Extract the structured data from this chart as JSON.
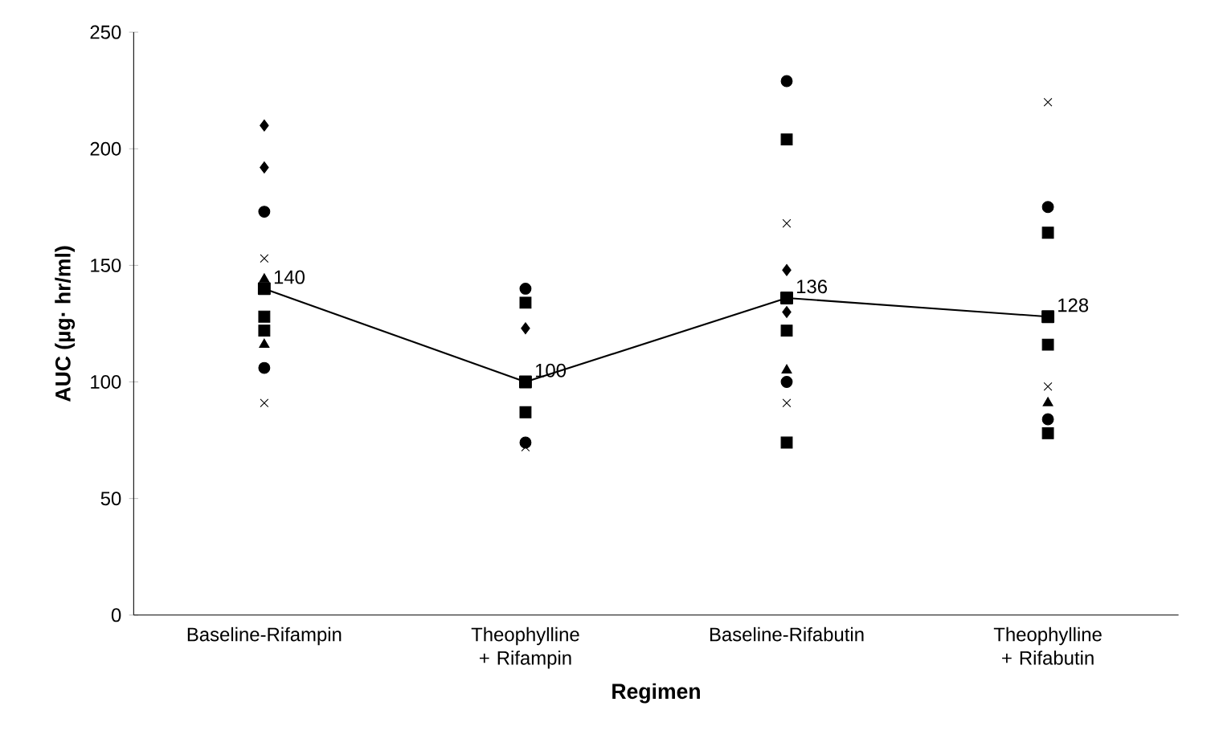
{
  "chart_data": {
    "type": "scatter",
    "xlabel": "Regimen",
    "ylabel": "AUC (µg· hr/ml)",
    "categories": [
      "Baseline-Rifampin",
      "Theophylline + Rifampin",
      "Baseline-Rifabutin",
      "Theophylline + Rifabutin"
    ],
    "ylim": [
      0,
      250
    ],
    "yticks": [
      0,
      50,
      100,
      150,
      200,
      250
    ],
    "series": [
      {
        "marker": "diamond",
        "color": "#000000",
        "values": [
          210,
          null,
          130,
          null
        ]
      },
      {
        "marker": "diamond",
        "color": "#000000",
        "values": [
          192,
          123,
          148,
          null
        ]
      },
      {
        "marker": "circle",
        "color": "#000000",
        "values": [
          173,
          140,
          229,
          175
        ]
      },
      {
        "marker": "cross",
        "color": "#000000",
        "values": [
          153,
          null,
          168,
          220
        ]
      },
      {
        "marker": "triangle",
        "color": "#000000",
        "values": [
          144,
          null,
          null,
          null
        ]
      },
      {
        "marker": "square",
        "color": "#000000",
        "values": [
          null,
          134,
          204,
          164
        ]
      },
      {
        "marker": "square",
        "color": "#000000",
        "values": [
          128,
          87,
          null,
          116
        ]
      },
      {
        "marker": "square",
        "color": "#000000",
        "values": [
          122,
          null,
          122,
          78
        ]
      },
      {
        "marker": "triangle",
        "color": "#000000",
        "values": [
          116,
          null,
          105,
          91
        ]
      },
      {
        "marker": "circle",
        "color": "#000000",
        "values": [
          106,
          74,
          100,
          84
        ]
      },
      {
        "marker": "cross",
        "color": "#000000",
        "values": [
          91,
          72,
          91,
          98
        ]
      },
      {
        "marker": "square",
        "color": "#000000",
        "values": [
          null,
          null,
          74,
          null
        ]
      },
      {
        "type": "line",
        "marker": "square",
        "color": "#000000",
        "values": [
          140,
          100,
          136,
          128
        ],
        "data_labels": true
      }
    ]
  }
}
